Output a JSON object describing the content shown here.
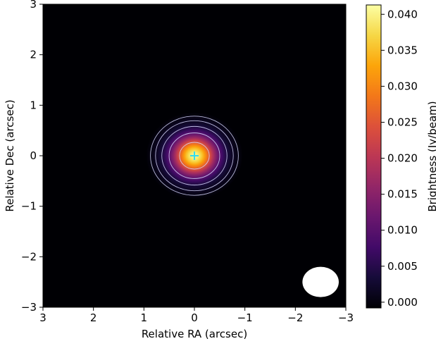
{
  "chart_data": {
    "type": "heatmap",
    "title": "",
    "xlabel": "Relative RA (arcsec)",
    "ylabel": "Relative Dec (arcsec)",
    "xlim": [
      3,
      -3
    ],
    "ylim": [
      -3,
      3
    ],
    "x_ticks": [
      3,
      2,
      1,
      0,
      -1,
      -2,
      -3
    ],
    "y_ticks": [
      3,
      2,
      1,
      0,
      -1,
      -2,
      -3
    ],
    "x_tick_labels": [
      "3",
      "2",
      "1",
      "0",
      "−1",
      "−2",
      "−3"
    ],
    "y_tick_labels": [
      "3",
      "2",
      "1",
      "0",
      "−1",
      "−2",
      "−3"
    ],
    "colormap": "inferno",
    "source": {
      "x": 0,
      "y": 0,
      "peak": 0.0405,
      "sigma_x": 0.3,
      "sigma_y": 0.27
    },
    "contour_levels": [
      0.0006,
      0.0015,
      0.004,
      0.01,
      0.025
    ],
    "contour_color": "#d8d8ff",
    "marker": {
      "x": 0,
      "y": 0,
      "symbol": "plus",
      "color": "#33ddee"
    },
    "beam": {
      "x": -2.5,
      "y": -2.5,
      "major": 0.72,
      "minor": 0.6,
      "color": "#ffffff"
    },
    "colorbar": {
      "label": "Brightness (Jy/beam)",
      "range": [
        -0.0008,
        0.0413
      ],
      "ticks": [
        0.0,
        0.005,
        0.01,
        0.015,
        0.02,
        0.025,
        0.03,
        0.035,
        0.04
      ],
      "tick_labels": [
        "0.000",
        "0.005",
        "0.010",
        "0.015",
        "0.020",
        "0.025",
        "0.030",
        "0.035",
        "0.040"
      ]
    }
  }
}
